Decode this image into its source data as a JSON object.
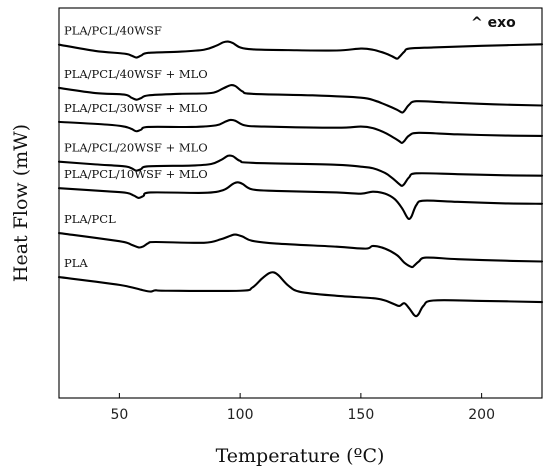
{
  "chart_data": {
    "type": "line",
    "xlabel": "Temperature (ºC)",
    "ylabel": "Heat Flow (mW)",
    "annotation": "^ exo",
    "xlim": [
      25,
      225
    ],
    "ylim": [
      0,
      100
    ],
    "x_ticks": [
      50,
      100,
      150,
      200
    ],
    "y_ticks_shown": false,
    "grid": false,
    "series": [
      {
        "name": "PLA/PCL/40WSF",
        "color": "#000000",
        "points": [
          [
            25,
            90.6
          ],
          [
            40,
            89.0
          ],
          [
            52,
            88.3
          ],
          [
            55,
            87.8
          ],
          [
            57,
            87.3
          ],
          [
            59,
            87.8
          ],
          [
            62,
            88.5
          ],
          [
            75,
            88.8
          ],
          [
            85,
            89.3
          ],
          [
            90,
            90.3
          ],
          [
            93,
            91.2
          ],
          [
            95,
            91.4
          ],
          [
            97,
            91.0
          ],
          [
            100,
            89.9
          ],
          [
            105,
            89.4
          ],
          [
            120,
            89.2
          ],
          [
            140,
            89.1
          ],
          [
            150,
            89.6
          ],
          [
            155,
            89.3
          ],
          [
            160,
            88.4
          ],
          [
            163,
            87.6
          ],
          [
            165,
            87.0
          ],
          [
            166,
            87.5
          ],
          [
            168,
            88.8
          ],
          [
            170,
            89.6
          ],
          [
            180,
            89.9
          ],
          [
            200,
            90.3
          ],
          [
            225,
            90.7
          ]
        ]
      },
      {
        "name": "PLA/PCL/40WSF + MLO",
        "color": "#000000",
        "points": [
          [
            25,
            79.5
          ],
          [
            40,
            78.2
          ],
          [
            52,
            77.8
          ],
          [
            55,
            77.0
          ],
          [
            57,
            76.5
          ],
          [
            59,
            76.9
          ],
          [
            62,
            77.6
          ],
          [
            75,
            78.0
          ],
          [
            88,
            78.2
          ],
          [
            93,
            79.4
          ],
          [
            96,
            80.2
          ],
          [
            98,
            80.0
          ],
          [
            101,
            78.6
          ],
          [
            105,
            78.0
          ],
          [
            130,
            77.6
          ],
          [
            150,
            77.0
          ],
          [
            156,
            76.2
          ],
          [
            161,
            75.0
          ],
          [
            165,
            73.9
          ],
          [
            167,
            73.2
          ],
          [
            168,
            73.6
          ],
          [
            170,
            75.2
          ],
          [
            173,
            76.1
          ],
          [
            185,
            75.8
          ],
          [
            205,
            75.3
          ],
          [
            225,
            75.0
          ]
        ]
      },
      {
        "name": "PLA/PCL/30WSF + MLO",
        "color": "#000000",
        "points": [
          [
            25,
            70.8
          ],
          [
            45,
            70.1
          ],
          [
            52,
            69.6
          ],
          [
            55,
            69.0
          ],
          [
            57,
            68.4
          ],
          [
            59,
            68.8
          ],
          [
            62,
            69.5
          ],
          [
            80,
            69.5
          ],
          [
            90,
            69.9
          ],
          [
            94,
            70.9
          ],
          [
            96,
            71.3
          ],
          [
            98,
            71.1
          ],
          [
            102,
            69.9
          ],
          [
            110,
            69.6
          ],
          [
            140,
            69.3
          ],
          [
            150,
            69.6
          ],
          [
            155,
            69.2
          ],
          [
            160,
            68.0
          ],
          [
            164,
            66.6
          ],
          [
            166,
            65.8
          ],
          [
            167,
            65.4
          ],
          [
            168,
            65.9
          ],
          [
            170,
            67.3
          ],
          [
            174,
            68.0
          ],
          [
            190,
            67.6
          ],
          [
            210,
            67.3
          ],
          [
            225,
            67.2
          ]
        ]
      },
      {
        "name": "PLA/PCL/20WSF + MLO",
        "color": "#000000",
        "points": [
          [
            25,
            60.6
          ],
          [
            40,
            59.9
          ],
          [
            52,
            59.4
          ],
          [
            55,
            58.9
          ],
          [
            57,
            58.3
          ],
          [
            59,
            58.7
          ],
          [
            62,
            59.4
          ],
          [
            80,
            59.6
          ],
          [
            88,
            60.0
          ],
          [
            92,
            61.0
          ],
          [
            95,
            62.1
          ],
          [
            97,
            62.0
          ],
          [
            100,
            60.8
          ],
          [
            105,
            60.3
          ],
          [
            140,
            59.8
          ],
          [
            150,
            59.3
          ],
          [
            155,
            58.9
          ],
          [
            160,
            57.7
          ],
          [
            163,
            56.4
          ],
          [
            166,
            54.8
          ],
          [
            167,
            54.4
          ],
          [
            168,
            54.9
          ],
          [
            170,
            56.6
          ],
          [
            173,
            57.6
          ],
          [
            190,
            57.4
          ],
          [
            210,
            57.1
          ],
          [
            225,
            57.0
          ]
        ]
      },
      {
        "name": "PLA/PCL/10WSF + MLO",
        "color": "#000000",
        "points": [
          [
            25,
            53.8
          ],
          [
            45,
            53.0
          ],
          [
            53,
            52.6
          ],
          [
            56,
            51.9
          ],
          [
            58,
            51.3
          ],
          [
            60,
            51.8
          ],
          [
            63,
            52.7
          ],
          [
            85,
            52.6
          ],
          [
            93,
            53.3
          ],
          [
            97,
            54.9
          ],
          [
            99,
            55.3
          ],
          [
            101,
            54.9
          ],
          [
            105,
            53.5
          ],
          [
            115,
            53.1
          ],
          [
            140,
            52.7
          ],
          [
            150,
            52.4
          ],
          [
            155,
            52.9
          ],
          [
            160,
            52.4
          ],
          [
            164,
            51.0
          ],
          [
            167,
            48.7
          ],
          [
            169,
            46.5
          ],
          [
            170,
            45.9
          ],
          [
            171,
            46.6
          ],
          [
            173,
            49.5
          ],
          [
            176,
            50.6
          ],
          [
            190,
            50.3
          ],
          [
            210,
            49.9
          ],
          [
            225,
            49.8
          ]
        ]
      },
      {
        "name": "PLA/PCL",
        "color": "#000000",
        "points": [
          [
            25,
            42.3
          ],
          [
            50,
            40.2
          ],
          [
            55,
            39.3
          ],
          [
            58,
            38.6
          ],
          [
            60,
            38.9
          ],
          [
            62,
            39.7
          ],
          [
            65,
            40.0
          ],
          [
            85,
            39.8
          ],
          [
            92,
            40.7
          ],
          [
            96,
            41.6
          ],
          [
            98,
            41.9
          ],
          [
            101,
            41.4
          ],
          [
            105,
            40.3
          ],
          [
            115,
            39.6
          ],
          [
            140,
            38.8
          ],
          [
            152,
            38.3
          ],
          [
            155,
            39.0
          ],
          [
            160,
            38.3
          ],
          [
            165,
            36.6
          ],
          [
            168,
            34.7
          ],
          [
            171,
            33.6
          ],
          [
            172,
            33.9
          ],
          [
            174,
            35.0
          ],
          [
            177,
            36.0
          ],
          [
            190,
            35.6
          ],
          [
            210,
            35.2
          ],
          [
            225,
            35.0
          ]
        ]
      },
      {
        "name": "PLA",
        "color": "#000000",
        "points": [
          [
            25,
            31.0
          ],
          [
            50,
            29.0
          ],
          [
            60,
            27.6
          ],
          [
            63,
            27.3
          ],
          [
            65,
            27.6
          ],
          [
            70,
            27.5
          ],
          [
            100,
            27.5
          ],
          [
            105,
            28.3
          ],
          [
            109,
            30.6
          ],
          [
            112,
            32.0
          ],
          [
            114,
            32.2
          ],
          [
            116,
            31.4
          ],
          [
            120,
            28.8
          ],
          [
            125,
            27.2
          ],
          [
            140,
            26.2
          ],
          [
            155,
            25.6
          ],
          [
            160,
            25.0
          ],
          [
            164,
            24.0
          ],
          [
            166,
            23.6
          ],
          [
            168,
            24.3
          ],
          [
            170,
            23.0
          ],
          [
            172,
            21.3
          ],
          [
            173,
            21.0
          ],
          [
            174,
            21.6
          ],
          [
            176,
            23.7
          ],
          [
            180,
            25.0
          ],
          [
            200,
            24.9
          ],
          [
            225,
            24.6
          ]
        ]
      }
    ]
  }
}
